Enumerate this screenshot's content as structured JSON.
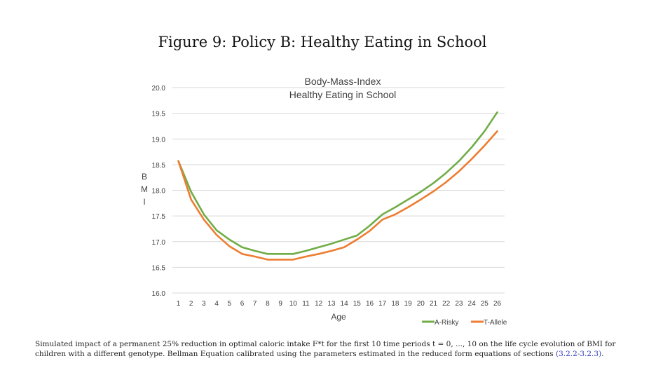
{
  "figure": {
    "title": "Figure 9: Policy B: Healthy Eating in School"
  },
  "caption": {
    "text": "Simulated impact of a permanent 25% reduction in optimal caloric intake F*t for the first 10 time periods t = 0, ..., 10 on the life cycle evolution of BMI for children with a different genotype. Bellman Equation calibrated using the parameters estimated in the reduced form equations of sections",
    "ref": "(3.2.2-3.2.3)",
    "end": "."
  },
  "chart_data": {
    "type": "line",
    "title": "Body-Mass-Index",
    "subtitle": "Healthy Eating in School",
    "xlabel": "Age",
    "ylabel": "BMI",
    "x": [
      1,
      2,
      3,
      4,
      5,
      6,
      7,
      8,
      9,
      10,
      11,
      12,
      13,
      14,
      15,
      16,
      17,
      18,
      19,
      20,
      21,
      22,
      23,
      24,
      25,
      26
    ],
    "ylim": [
      16.0,
      20.0
    ],
    "yticks": [
      "16.0",
      "16.5",
      "17.0",
      "17.5",
      "18.0",
      "18.5",
      "19.0",
      "19.5",
      "20.0"
    ],
    "grid": true,
    "legend": "bottom-right",
    "series": [
      {
        "name": "A-Risky",
        "color": "#70ad47",
        "values": [
          18.57,
          17.97,
          17.53,
          17.22,
          17.04,
          16.89,
          16.82,
          16.76,
          16.76,
          16.76,
          16.82,
          16.89,
          16.96,
          17.04,
          17.12,
          17.31,
          17.53,
          17.67,
          17.82,
          17.97,
          18.14,
          18.34,
          18.57,
          18.84,
          19.15,
          19.52
        ]
      },
      {
        "name": "T-Allele",
        "color": "#ed7d31",
        "values": [
          18.57,
          17.82,
          17.43,
          17.13,
          16.91,
          16.76,
          16.71,
          16.65,
          16.65,
          16.65,
          16.71,
          16.76,
          16.82,
          16.89,
          17.04,
          17.21,
          17.43,
          17.53,
          17.67,
          17.82,
          17.98,
          18.16,
          18.37,
          18.61,
          18.87,
          19.15
        ]
      }
    ]
  }
}
